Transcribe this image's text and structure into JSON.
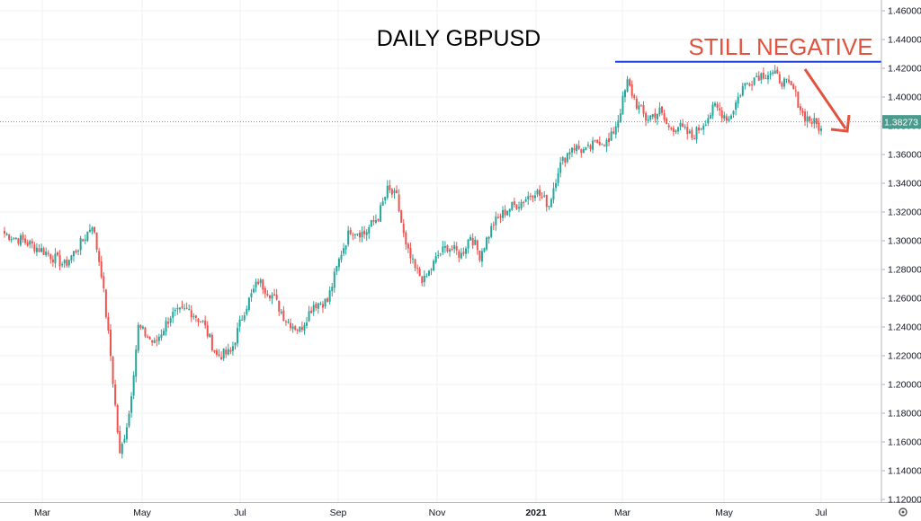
{
  "chart_data": {
    "type": "candlestick",
    "title": "DAILY GBPUSD",
    "annotation": "STILL NEGATIVE",
    "current_price": "1.38273",
    "resistance_level": 1.4245,
    "ylim": [
      1.12,
      1.47
    ],
    "y_ticks": [
      "1.12000",
      "1.14000",
      "1.16000",
      "1.18000",
      "1.20000",
      "1.22000",
      "1.24000",
      "1.26000",
      "1.28000",
      "1.30000",
      "1.32000",
      "1.34000",
      "1.36000",
      "1.38000",
      "1.40000",
      "1.42000",
      "1.44000",
      "1.46000"
    ],
    "x_ticks": [
      {
        "label": "Mar",
        "bold": false
      },
      {
        "label": "May",
        "bold": false
      },
      {
        "label": "Jul",
        "bold": false
      },
      {
        "label": "Sep",
        "bold": false
      },
      {
        "label": "Nov",
        "bold": false
      },
      {
        "label": "2021",
        "bold": true
      },
      {
        "label": "Mar",
        "bold": false
      },
      {
        "label": "May",
        "bold": false
      },
      {
        "label": "Jul",
        "bold": false
      }
    ],
    "anchors": [
      [
        0,
        1.305
      ],
      [
        8,
        1.3
      ],
      [
        18,
        1.292
      ],
      [
        26,
        1.283
      ],
      [
        34,
        1.3
      ],
      [
        38,
        1.312
      ],
      [
        42,
        1.278
      ],
      [
        46,
        1.22
      ],
      [
        50,
        1.15
      ],
      [
        54,
        1.18
      ],
      [
        58,
        1.24
      ],
      [
        65,
        1.228
      ],
      [
        72,
        1.248
      ],
      [
        80,
        1.252
      ],
      [
        86,
        1.243
      ],
      [
        92,
        1.22
      ],
      [
        98,
        1.222
      ],
      [
        104,
        1.252
      ],
      [
        110,
        1.272
      ],
      [
        116,
        1.262
      ],
      [
        122,
        1.245
      ],
      [
        128,
        1.238
      ],
      [
        134,
        1.256
      ],
      [
        140,
        1.258
      ],
      [
        146,
        1.292
      ],
      [
        150,
        1.308
      ],
      [
        156,
        1.305
      ],
      [
        162,
        1.317
      ],
      [
        166,
        1.335
      ],
      [
        170,
        1.33
      ],
      [
        174,
        1.295
      ],
      [
        178,
        1.28
      ],
      [
        182,
        1.272
      ],
      [
        188,
        1.29
      ],
      [
        192,
        1.296
      ],
      [
        198,
        1.29
      ],
      [
        202,
        1.304
      ],
      [
        206,
        1.29
      ],
      [
        212,
        1.312
      ],
      [
        218,
        1.322
      ],
      [
        224,
        1.327
      ],
      [
        230,
        1.335
      ],
      [
        236,
        1.325
      ],
      [
        240,
        1.35
      ],
      [
        246,
        1.366
      ],
      [
        252,
        1.362
      ],
      [
        258,
        1.37
      ],
      [
        262,
        1.368
      ],
      [
        266,
        1.385
      ],
      [
        270,
        1.41
      ],
      [
        274,
        1.395
      ],
      [
        278,
        1.385
      ],
      [
        284,
        1.39
      ],
      [
        288,
        1.378
      ],
      [
        292,
        1.38
      ],
      [
        298,
        1.372
      ],
      [
        302,
        1.38
      ],
      [
        308,
        1.393
      ],
      [
        314,
        1.385
      ],
      [
        320,
        1.407
      ],
      [
        326,
        1.415
      ],
      [
        332,
        1.417
      ],
      [
        338,
        1.41
      ],
      [
        342,
        1.405
      ],
      [
        346,
        1.388
      ],
      [
        350,
        1.383
      ],
      [
        354,
        1.378
      ]
    ]
  },
  "colors": {
    "up": "#26a69a",
    "down": "#ef5350",
    "resistance_line": "#1e3ed8",
    "annotation": "#e2533f",
    "price_label_bg": "#4a9b8e",
    "grid": "#eef0f3"
  },
  "icons": {
    "settings": "gear-icon"
  }
}
